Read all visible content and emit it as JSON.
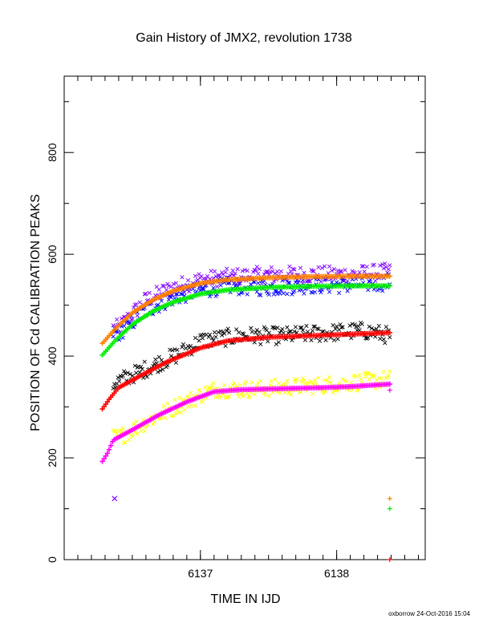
{
  "chart_data": {
    "type": "scatter",
    "title": "Gain History of JMX2, revolution 1738",
    "xlabel": "TIME IN IJD",
    "ylabel": "POSITION OF Cd CALIBRATION PEAKS",
    "xlim": [
      6136.0,
      6138.65
    ],
    "ylim": [
      0,
      950
    ],
    "x_ticks": [
      6137,
      6138
    ],
    "y_ticks": [
      0,
      200,
      400,
      600,
      800
    ],
    "grid": false,
    "footer": "oxborrow 24-Oct-2016 15:04",
    "x_start": 6136.28,
    "x_end": 6138.39,
    "series": [
      {
        "role": "fit",
        "color": "#ff8000",
        "marker": "+",
        "points": [
          [
            6136.28,
            425
          ],
          [
            6136.38,
            455
          ],
          [
            6136.5,
            485
          ],
          [
            6136.65,
            510
          ],
          [
            6136.8,
            528
          ],
          [
            6137.0,
            543
          ],
          [
            6137.2,
            550
          ],
          [
            6137.5,
            554
          ],
          [
            6137.8,
            556
          ],
          [
            6138.1,
            557
          ],
          [
            6138.39,
            557
          ]
        ]
      },
      {
        "role": "fit",
        "color": "#00ee00",
        "marker": "+",
        "points": [
          [
            6136.28,
            402
          ],
          [
            6136.38,
            432
          ],
          [
            6136.5,
            462
          ],
          [
            6136.65,
            488
          ],
          [
            6136.8,
            506
          ],
          [
            6137.0,
            522
          ],
          [
            6137.2,
            530
          ],
          [
            6137.5,
            535
          ],
          [
            6137.8,
            537
          ],
          [
            6138.1,
            538
          ],
          [
            6138.39,
            538
          ]
        ]
      },
      {
        "role": "fit",
        "color": "#ff0000",
        "marker": "+",
        "points": [
          [
            6136.28,
            296
          ],
          [
            6136.33,
            315
          ],
          [
            6136.4,
            338
          ],
          [
            6136.55,
            360
          ],
          [
            6136.75,
            388
          ],
          [
            6137.0,
            416
          ],
          [
            6137.2,
            430
          ],
          [
            6137.5,
            437
          ],
          [
            6137.8,
            440
          ],
          [
            6138.1,
            443
          ],
          [
            6138.39,
            446
          ]
        ]
      },
      {
        "role": "fit",
        "color": "#ff00ff",
        "marker": "+",
        "points": [
          [
            6136.28,
            193
          ],
          [
            6136.32,
            210
          ],
          [
            6136.36,
            235
          ],
          [
            6136.5,
            255
          ],
          [
            6136.7,
            285
          ],
          [
            6136.9,
            310
          ],
          [
            6137.1,
            330
          ],
          [
            6137.3,
            334
          ],
          [
            6137.6,
            336
          ],
          [
            6137.9,
            338
          ],
          [
            6138.1,
            340
          ],
          [
            6138.39,
            345
          ]
        ]
      },
      {
        "role": "data",
        "color": "#8000ff",
        "marker": "x",
        "points": [
          [
            6136.4,
            455
          ],
          [
            6136.6,
            510
          ],
          [
            6136.8,
            535
          ],
          [
            6137.0,
            550
          ],
          [
            6137.2,
            555
          ],
          [
            6137.5,
            560
          ],
          [
            6137.8,
            560
          ],
          [
            6138.1,
            560
          ],
          [
            6138.35,
            565
          ]
        ]
      },
      {
        "role": "data",
        "color": "#0000ff",
        "marker": "x",
        "points": [
          [
            6136.4,
            445
          ],
          [
            6136.6,
            490
          ],
          [
            6136.8,
            515
          ],
          [
            6137.0,
            530
          ],
          [
            6137.2,
            538
          ],
          [
            6137.5,
            535
          ],
          [
            6137.8,
            540
          ],
          [
            6138.1,
            540
          ],
          [
            6138.35,
            545
          ]
        ]
      },
      {
        "role": "data",
        "color": "#000000",
        "marker": "x",
        "points": [
          [
            6136.35,
            345
          ],
          [
            6136.6,
            375
          ],
          [
            6136.85,
            405
          ],
          [
            6137.0,
            430
          ],
          [
            6137.3,
            440
          ],
          [
            6137.6,
            440
          ],
          [
            6137.9,
            445
          ],
          [
            6138.2,
            450
          ],
          [
            6138.39,
            440
          ]
        ]
      },
      {
        "role": "data",
        "color": "#ffff00",
        "marker": "x",
        "points": [
          [
            6136.4,
            240
          ],
          [
            6136.6,
            270
          ],
          [
            6136.85,
            305
          ],
          [
            6137.1,
            335
          ],
          [
            6137.4,
            335
          ],
          [
            6137.7,
            340
          ],
          [
            6138.0,
            345
          ],
          [
            6138.2,
            350
          ],
          [
            6138.39,
            355
          ]
        ]
      },
      {
        "role": "outlier",
        "color": "#8000ff",
        "marker": "x",
        "points": [
          [
            6136.37,
            120
          ]
        ]
      },
      {
        "role": "outlier",
        "color": "#ff8000",
        "marker": "+",
        "points": [
          [
            6138.39,
            120
          ]
        ]
      },
      {
        "role": "outlier",
        "color": "#00ee00",
        "marker": "+",
        "points": [
          [
            6138.39,
            100
          ]
        ]
      },
      {
        "role": "outlier",
        "color": "#ff0000",
        "marker": "+",
        "points": [
          [
            6138.39,
            0
          ]
        ]
      },
      {
        "role": "outlier",
        "color": "#ff00ff",
        "marker": "+",
        "points": [
          [
            6138.39,
            333
          ]
        ]
      }
    ]
  }
}
